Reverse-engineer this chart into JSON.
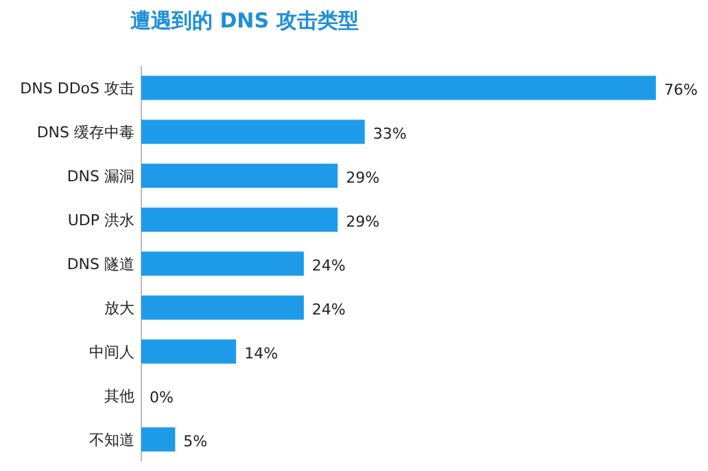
{
  "chart_data": {
    "type": "bar",
    "orientation": "horizontal",
    "title": "遭遇到的 DNS 攻击类型",
    "categories": [
      "DNS DDoS 攻击",
      "DNS 缓存中毒",
      "DNS 漏洞",
      "UDP 洪水",
      "DNS 隧道",
      "放大",
      "中间人",
      "其他",
      "不知道"
    ],
    "values": [
      76,
      33,
      29,
      29,
      24,
      24,
      14,
      0,
      5
    ],
    "value_labels": [
      "76%",
      "33%",
      "29%",
      "29%",
      "24%",
      "24%",
      "14%",
      "0%",
      "5%"
    ],
    "color": "#1e9be8"
  }
}
